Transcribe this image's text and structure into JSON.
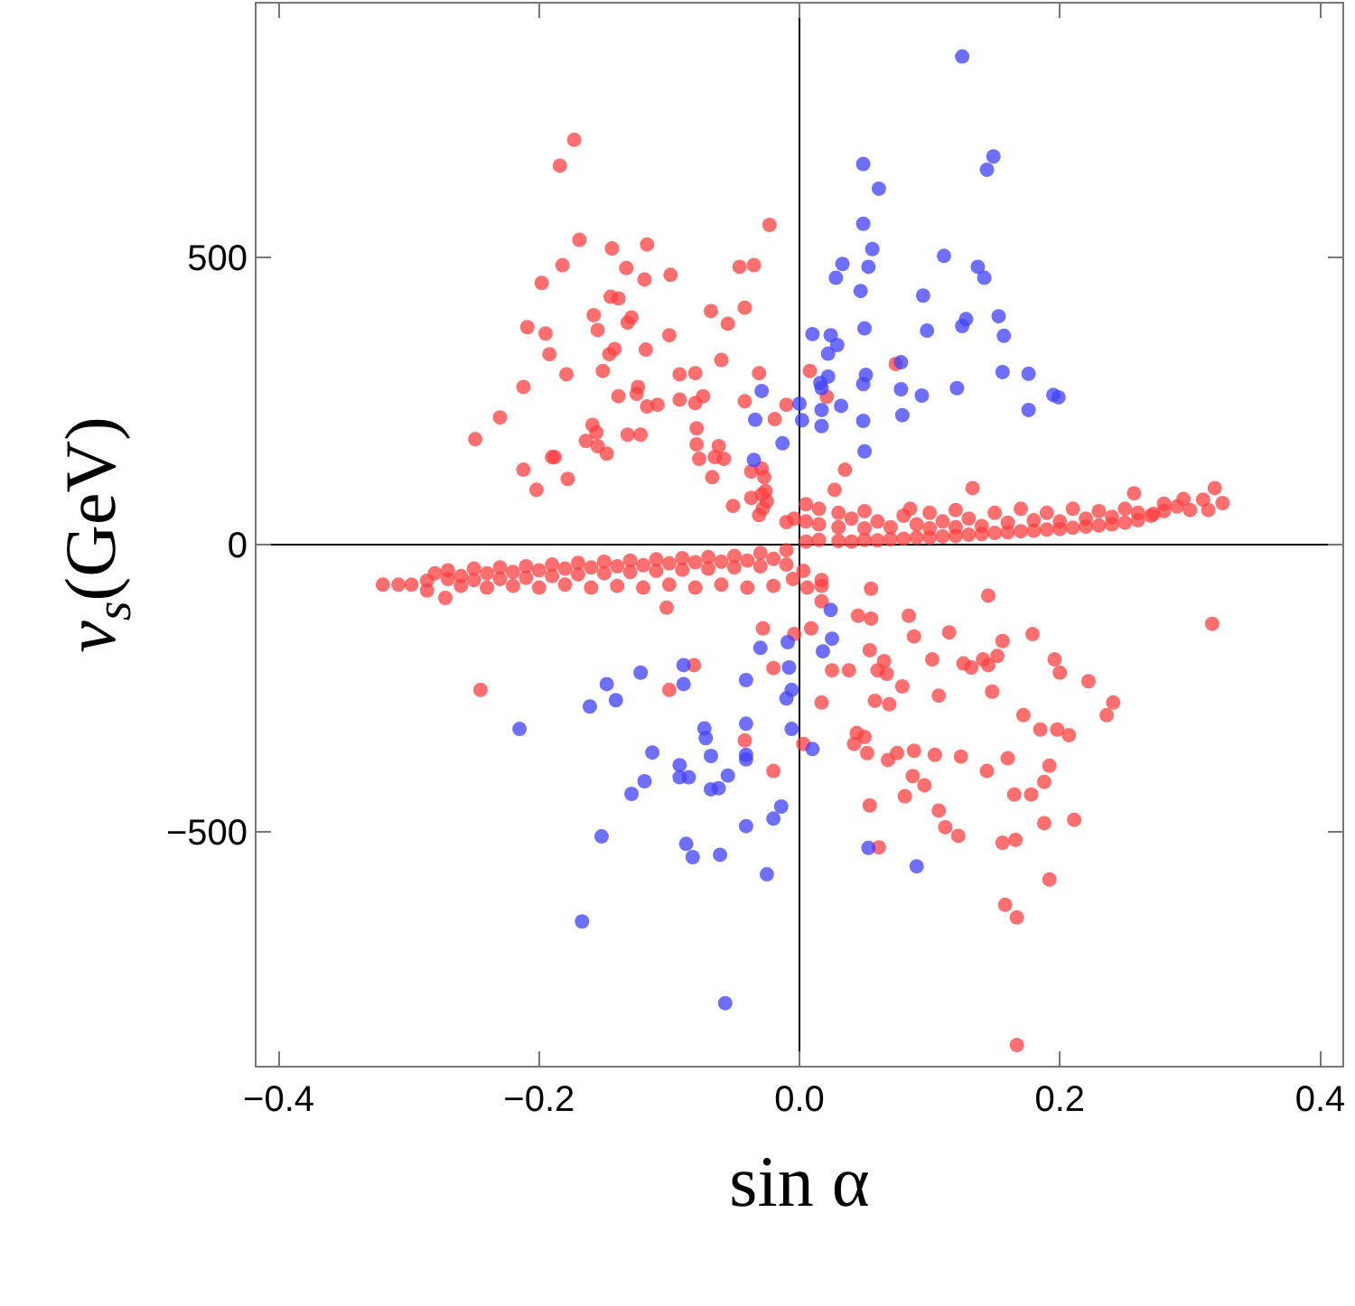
{
  "chart_data": {
    "type": "scatter",
    "xlabel": "sin α",
    "ylabel": "v$_{s}$(GeV)",
    "marker": "circle",
    "xlim": [
      -0.417,
      0.417
    ],
    "ylim": [
      -907,
      941
    ],
    "xticks": [
      {
        "value": -0.4,
        "label": "−0.4"
      },
      {
        "value": -0.2,
        "label": "−0.2"
      },
      {
        "value": 0,
        "label": "0.0"
      },
      {
        "value": 0.2,
        "label": "0.2"
      },
      {
        "value": 0.4,
        "label": "0.4"
      }
    ],
    "yticks": [
      {
        "value": -500,
        "label": "−500"
      },
      {
        "value": 0,
        "label": "0"
      },
      {
        "value": 500,
        "label": "500"
      }
    ],
    "series": [
      {
        "color": "#ff3f3f",
        "x": [
          -0.173,
          -0.184,
          -0.169,
          -0.023,
          -0.144,
          -0.117,
          -0.182,
          -0.133,
          -0.119,
          -0.099,
          -0.046,
          -0.035,
          -0.198,
          -0.145,
          -0.139,
          -0.068,
          -0.042,
          -0.158,
          -0.129,
          -0.132,
          -0.209,
          -0.155,
          -0.195,
          -0.055,
          -0.1,
          -0.142,
          -0.118,
          -0.192,
          -0.146,
          -0.06,
          -0.151,
          -0.179,
          -0.092,
          -0.08,
          -0.031,
          -0.212,
          -0.124,
          -0.139,
          -0.125,
          -0.074,
          -0.092,
          -0.08,
          -0.117,
          -0.109,
          -0.042,
          -0.01,
          -0.23,
          -0.019,
          -0.159,
          -0.079,
          -0.156,
          -0.249,
          -0.132,
          -0.122,
          -0.164,
          -0.155,
          -0.079,
          -0.148,
          -0.062,
          -0.19,
          -0.188,
          -0.065,
          -0.058,
          -0.077,
          -0.212,
          -0.029,
          -0.037,
          -0.027,
          -0.067,
          -0.178,
          -0.202,
          -0.026,
          -0.037,
          -0.029,
          -0.025,
          -0.051,
          -0.028,
          -0.031,
          -0.01,
          -0.004,
          0.008,
          0.074,
          0.021,
          0.035,
          0.027,
          0.133,
          0.319,
          0.325,
          0.257,
          0.295,
          0.314,
          0.28,
          0.272,
          0.005,
          0.005,
          0.005,
          0.015,
          0.015,
          0.015,
          0.03,
          0.03,
          0.03,
          0.04,
          0.04,
          0.05,
          0.05,
          0.05,
          0.06,
          0.06,
          0.07,
          0.07,
          0.08,
          0.08,
          0.085,
          0.09,
          0.09,
          0.1,
          0.1,
          0.1,
          0.11,
          0.11,
          0.12,
          0.12,
          0.12,
          0.13,
          0.13,
          0.14,
          0.14,
          0.15,
          0.15,
          0.16,
          0.16,
          0.17,
          0.17,
          0.18,
          0.18,
          0.19,
          0.19,
          0.2,
          0.2,
          0.21,
          0.21,
          0.22,
          0.22,
          0.23,
          0.23,
          0.24,
          0.24,
          0.25,
          0.25,
          0.26,
          0.26,
          0.27,
          0.28,
          0.29,
          0.3,
          0.31,
          -0.32,
          -0.308,
          -0.298,
          -0.286,
          -0.286,
          -0.272,
          -0.28,
          -0.27,
          -0.27,
          -0.26,
          -0.26,
          -0.25,
          -0.25,
          -0.24,
          -0.24,
          -0.23,
          -0.23,
          -0.22,
          -0.22,
          -0.21,
          -0.21,
          -0.2,
          -0.2,
          -0.19,
          -0.19,
          -0.18,
          -0.18,
          -0.17,
          -0.17,
          -0.16,
          -0.16,
          -0.15,
          -0.15,
          -0.14,
          -0.14,
          -0.13,
          -0.13,
          -0.12,
          -0.12,
          -0.11,
          -0.11,
          -0.1,
          -0.1,
          -0.09,
          -0.09,
          -0.08,
          -0.08,
          -0.07,
          -0.07,
          -0.06,
          -0.06,
          -0.05,
          -0.05,
          -0.04,
          -0.04,
          -0.03,
          -0.03,
          -0.02,
          -0.02,
          -0.01,
          -0.01,
          -0.005,
          -0.102,
          -0.028,
          -0.081,
          -0.02,
          -0.245,
          -0.1,
          -0.042,
          -0.02,
          -0.004,
          0.003,
          0.017,
          0.017,
          0.006,
          0.055,
          0.145,
          0.017,
          0.045,
          0.055,
          0.084,
          0.317,
          0.009,
          0.088,
          0.115,
          0.179,
          0.156,
          0.054,
          0.152,
          0.065,
          0.102,
          0.126,
          0.132,
          0.141,
          0.145,
          0.196,
          0.2,
          0.025,
          0.038,
          0.06,
          0.067,
          0.079,
          0.107,
          0.148,
          0.222,
          0.241,
          0.058,
          0.069,
          0.017,
          0.236,
          0.172,
          0.185,
          0.198,
          0.207,
          0.044,
          0.05,
          0.042,
          0.003,
          0.052,
          0.068,
          0.075,
          0.088,
          0.104,
          0.124,
          0.16,
          0.144,
          0.192,
          0.188,
          0.087,
          0.096,
          0.081,
          0.165,
          0.178,
          0.054,
          0.107,
          0.112,
          0.122,
          0.188,
          0.211,
          0.156,
          0.166,
          0.061,
          0.192,
          0.158,
          0.167,
          0.167
        ],
        "values": [
          704,
          659,
          530,
          556,
          515,
          522,
          486,
          481,
          461,
          469,
          483,
          486,
          455,
          431,
          428,
          406,
          412,
          399,
          395,
          386,
          378,
          373,
          367,
          384,
          364,
          340,
          339,
          331,
          331,
          321,
          302,
          296,
          296,
          298,
          298,
          274,
          274,
          258,
          262,
          258,
          252,
          246,
          240,
          243,
          249,
          243,
          221,
          218,
          208,
          202,
          195,
          183,
          191,
          191,
          180,
          171,
          174,
          158,
          171,
          152,
          152,
          152,
          149,
          149,
          130,
          132,
          127,
          117,
          117,
          114,
          95,
          93,
          81,
          87,
          75,
          67,
          63,
          51,
          39,
          45,
          302,
          314,
          257,
          130,
          95,
          98,
          98,
          72,
          89,
          79,
          60,
          71,
          53,
          5,
          40,
          70,
          8,
          35,
          62,
          6,
          30,
          55,
          5,
          45,
          8,
          28,
          58,
          7,
          40,
          9,
          30,
          10,
          50,
          62,
          12,
          35,
          12,
          28,
          55,
          14,
          40,
          15,
          30,
          60,
          17,
          45,
          18,
          32,
          20,
          55,
          21,
          38,
          23,
          62,
          24,
          42,
          26,
          55,
          27,
          40,
          29,
          62,
          31,
          45,
          33,
          58,
          35,
          48,
          38,
          62,
          42,
          55,
          50,
          58,
          66,
          60,
          78,
          -70,
          -70,
          -70,
          -63,
          -80,
          -93,
          -50,
          -60,
          -45,
          -55,
          -72,
          -42,
          -62,
          -50,
          -75,
          -40,
          -60,
          -48,
          -72,
          -38,
          -58,
          -45,
          -75,
          -35,
          -55,
          -42,
          -70,
          -32,
          -52,
          -40,
          -75,
          -30,
          -50,
          -38,
          -72,
          -28,
          -48,
          -36,
          -75,
          -26,
          -46,
          -33,
          -70,
          -24,
          -44,
          -31,
          -75,
          -22,
          -42,
          -30,
          -70,
          -20,
          -40,
          -28,
          -75,
          -15,
          -38,
          -25,
          -72,
          -10,
          -35,
          -60,
          -110,
          -146,
          -210,
          -215,
          -253,
          -253,
          -341,
          -394,
          -156,
          -46,
          -62,
          -72,
          -75,
          -77,
          -89,
          -99,
          -124,
          -129,
          -124,
          -138,
          -146,
          -160,
          -153,
          -156,
          -168,
          -184,
          -194,
          -203,
          -200,
          -207,
          -214,
          -200,
          -210,
          -200,
          -223,
          -219,
          -219,
          -219,
          -225,
          -247,
          -263,
          -256,
          -238,
          -275,
          -272,
          -278,
          -275,
          -297,
          -297,
          -322,
          -322,
          -332,
          -328,
          -335,
          -347,
          -347,
          -363,
          -375,
          -363,
          -359,
          -366,
          -369,
          -372,
          -394,
          -385,
          -413,
          -403,
          -419,
          -438,
          -435,
          -435,
          -454,
          -463,
          -492,
          -507,
          -485,
          -479,
          -519,
          -514,
          -527,
          -583,
          -627,
          -649,
          -871
        ]
      },
      {
        "color": "#3f3fff",
        "x": [
          -0.029,
          -0.034,
          -0.013,
          -0.035,
          0.0,
          0.002,
          0.125,
          0.049,
          0.149,
          0.144,
          0.061,
          0.049,
          0.056,
          0.111,
          0.033,
          0.053,
          0.137,
          0.028,
          0.142,
          0.047,
          0.095,
          0.153,
          0.128,
          0.125,
          0.01,
          0.024,
          0.05,
          0.098,
          0.157,
          0.029,
          0.022,
          0.078,
          0.156,
          0.176,
          0.051,
          0.022,
          0.049,
          0.016,
          0.017,
          0.078,
          0.121,
          0.094,
          0.195,
          0.199,
          0.032,
          0.017,
          0.176,
          0.079,
          0.049,
          0.017,
          0.05,
          -0.009,
          -0.03,
          -0.089,
          -0.008,
          -0.089,
          -0.041,
          -0.148,
          -0.122,
          -0.161,
          -0.141,
          -0.006,
          -0.01,
          -0.215,
          -0.073,
          -0.072,
          -0.041,
          -0.006,
          -0.113,
          -0.068,
          -0.041,
          -0.041,
          -0.092,
          -0.092,
          -0.085,
          -0.055,
          -0.119,
          -0.129,
          -0.068,
          -0.062,
          -0.014,
          -0.02,
          -0.041,
          -0.152,
          -0.087,
          -0.082,
          -0.061,
          -0.025,
          -0.167,
          -0.057,
          0.024,
          0.025,
          0.018,
          0.01,
          0.053,
          0.09
        ],
        "values": [
          267,
          217,
          176,
          147,
          245,
          216,
          849,
          662,
          675,
          652,
          619,
          558,
          514,
          502,
          488,
          483,
          483,
          464,
          464,
          441,
          433,
          397,
          392,
          380,
          366,
          364,
          376,
          372,
          363,
          347,
          332,
          317,
          300,
          297,
          295,
          292,
          279,
          281,
          272,
          270,
          272,
          259,
          260,
          256,
          241,
          234,
          234,
          225,
          215,
          206,
          162,
          -170,
          -180,
          -210,
          -214,
          -243,
          -236,
          -243,
          -223,
          -282,
          -271,
          -253,
          -268,
          -321,
          -320,
          -337,
          -312,
          -321,
          -362,
          -368,
          -366,
          -374,
          -384,
          -405,
          -405,
          -402,
          -412,
          -434,
          -426,
          -424,
          -456,
          -477,
          -490,
          -508,
          -521,
          -544,
          -540,
          -574,
          -656,
          -798,
          -114,
          -164,
          -186,
          -356,
          -528,
          -560
        ]
      }
    ]
  }
}
